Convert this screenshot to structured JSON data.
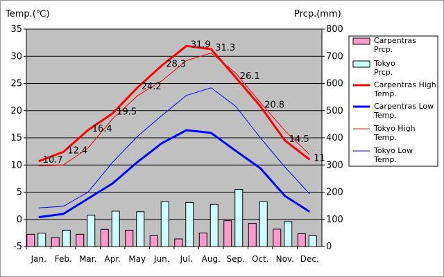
{
  "chart_data": {
    "type": "bar+line",
    "left_axis_title": "Temp.(℃)",
    "right_axis_title": "Prcp.(mm)",
    "categories": [
      "Jan.",
      "Feb.",
      "Mar.",
      "Apr.",
      "May",
      "Jun.",
      "Jul.",
      "Aug.",
      "Sep.",
      "Oct.",
      "Nov.",
      "Dec."
    ],
    "y_left": {
      "min": -5,
      "max": 35,
      "ticks": [
        "35",
        "30",
        "25",
        "20",
        "15",
        "10",
        "5",
        "0",
        "-5"
      ],
      "tick_values": [
        35,
        30,
        25,
        20,
        15,
        10,
        5,
        0,
        -5
      ]
    },
    "y_right": {
      "min": 0,
      "max": 800,
      "ticks": [
        "800",
        "700",
        "600",
        "500",
        "400",
        "300",
        "200",
        "100",
        "0"
      ],
      "tick_values": [
        800,
        700,
        600,
        500,
        400,
        300,
        200,
        100,
        0
      ]
    },
    "bar_series": [
      {
        "name": "Carpentras Prcp.",
        "color": "#ff99cc",
        "values": [
          45,
          33,
          45,
          63,
          60,
          40,
          28,
          50,
          95,
          85,
          64,
          47
        ]
      },
      {
        "name": "Tokyo Prcp.",
        "color": "#ccffff",
        "values": [
          49,
          60,
          115,
          130,
          128,
          165,
          162,
          155,
          210,
          165,
          92,
          40
        ]
      }
    ],
    "line_series": [
      {
        "name": "Carpentras High Temp.",
        "color": "#ff0000",
        "width": 3,
        "values": [
          10.7,
          12.4,
          16.4,
          19.5,
          24.2,
          28.3,
          31.9,
          31.3,
          26.1,
          20.8,
          14.5,
          11
        ]
      },
      {
        "name": "Carpentras Low Temp.",
        "color": "#0000ff",
        "width": 3,
        "values": [
          0.4,
          1.0,
          3.8,
          6.6,
          10.5,
          14.0,
          16.4,
          15.9,
          12.6,
          9.4,
          4.3,
          1.4
        ]
      },
      {
        "name": "Tokyo High Temp.",
        "color": "#ff0000",
        "width": 1,
        "values": [
          9.8,
          10.0,
          13.1,
          18.5,
          22.7,
          25.5,
          29.2,
          30.6,
          26.9,
          21.5,
          16.3,
          11.9
        ]
      },
      {
        "name": "Tokyo Low Temp.",
        "color": "#0000ff",
        "width": 1,
        "values": [
          2.1,
          2.4,
          5.0,
          10.5,
          15.2,
          19.1,
          22.8,
          24.2,
          20.8,
          15.0,
          9.6,
          4.7
        ]
      }
    ],
    "data_labels": [
      "10.7",
      "12.4",
      "16.4",
      "19.5",
      "24.2",
      "28.3",
      "31.9",
      "31.3",
      "26.1",
      "20.8",
      "14.5",
      "11"
    ],
    "legend": [
      {
        "label": "Carpentras Prcp.",
        "kind": "bar",
        "color": "#ff99cc"
      },
      {
        "label": "Tokyo Prcp.",
        "kind": "bar",
        "color": "#ccffff"
      },
      {
        "label": "Carpentras High Temp.",
        "kind": "line",
        "color": "#ff0000",
        "width": 3
      },
      {
        "label": "Carpentras Low Temp.",
        "kind": "line",
        "color": "#0000ff",
        "width": 3
      },
      {
        "label": "Tokyo High Temp.",
        "kind": "line",
        "color": "#ff0000",
        "width": 1
      },
      {
        "label": "Tokyo Low Temp.",
        "kind": "line",
        "color": "#0000ff",
        "width": 1
      }
    ],
    "legend_position": "right",
    "plot_background": "#c0c0c0",
    "gridlines": "horizontal"
  }
}
